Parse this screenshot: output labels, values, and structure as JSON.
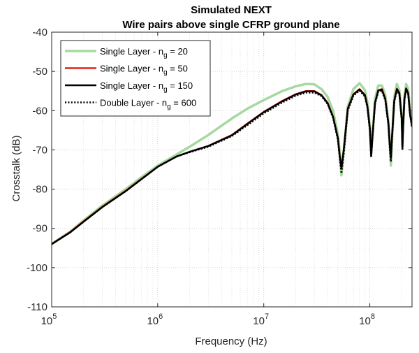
{
  "chart_data": {
    "type": "line",
    "title": "Simulated NEXT",
    "subtitle": "Wire pairs above single CFRP ground plane",
    "xlabel": "Frequency (Hz)",
    "ylabel": "Crosstalk (dB)",
    "xscale": "log",
    "xlim": [
      100000,
      250000000
    ],
    "ylim": [
      -110,
      -40
    ],
    "grid": true,
    "grid_minor_x": true,
    "legend_position": "top-left",
    "x_ticks": [
      {
        "value": 100000,
        "base": "10",
        "exp": "5"
      },
      {
        "value": 1000000,
        "base": "10",
        "exp": "6"
      },
      {
        "value": 10000000,
        "base": "10",
        "exp": "7"
      },
      {
        "value": 100000000,
        "base": "10",
        "exp": "8"
      }
    ],
    "y_ticks": [
      "-40",
      "-50",
      "-60",
      "-70",
      "-80",
      "-90",
      "-100",
      "-110"
    ],
    "series": [
      {
        "name": "Single Layer - n_g = 20",
        "legend_main": "Single Layer - n",
        "legend_sub": "g",
        "legend_tail": " = 20",
        "color": "#a6d9a0",
        "width": 3.5,
        "dash": "",
        "x": [
          100000,
          150000,
          200000,
          300000,
          500000,
          700000,
          1000000,
          1500000,
          2000000,
          3000000,
          5000000,
          7000000,
          10000000,
          15000000,
          20000000,
          25000000,
          30000000,
          35000000,
          40000000,
          45000000,
          50000000,
          52000000,
          54000000,
          57000000,
          62000000,
          70000000,
          80000000,
          90000000,
          95000000,
          100000000,
          103000000,
          106000000,
          112000000,
          120000000,
          130000000,
          140000000,
          150000000,
          155000000,
          158000000,
          162000000,
          170000000,
          180000000,
          190000000,
          200000000,
          203000000,
          206000000,
          212000000,
          220000000,
          230000000,
          240000000,
          250000000
        ],
        "y": [
          -94,
          -90.8,
          -88,
          -84.2,
          -80,
          -77,
          -74,
          -71.2,
          -69.2,
          -66.2,
          -62,
          -59.5,
          -57.3,
          -55,
          -53.8,
          -53.2,
          -53.3,
          -54.5,
          -56.5,
          -60,
          -66,
          -70.5,
          -76.5,
          -70,
          -59,
          -54.5,
          -53,
          -54.8,
          -58,
          -64,
          -70.5,
          -66,
          -57,
          -53.6,
          -53.6,
          -56,
          -63,
          -69.5,
          -74,
          -68,
          -56.5,
          -53.2,
          -54.8,
          -62,
          -69,
          -64.5,
          -56.5,
          -53.2,
          -54.5,
          -60,
          -63
        ]
      },
      {
        "name": "Single Layer - n_g = 50",
        "legend_main": "Single Layer - n",
        "legend_sub": "g",
        "legend_tail": " = 50",
        "color": "#e32119",
        "width": 2.5,
        "dash": "",
        "x": [
          100000,
          150000,
          200000,
          300000,
          500000,
          700000,
          1000000,
          1500000,
          2000000,
          3000000,
          5000000,
          7000000,
          10000000,
          15000000,
          20000000,
          25000000,
          30000000,
          35000000,
          40000000,
          45000000,
          50000000,
          52000000,
          54000000,
          57000000,
          62000000,
          70000000,
          80000000,
          90000000,
          95000000,
          100000000,
          103000000,
          106000000,
          112000000,
          120000000,
          130000000,
          140000000,
          150000000,
          155000000,
          158000000,
          162000000,
          170000000,
          180000000,
          190000000,
          200000000,
          203000000,
          206000000,
          212000000,
          220000000,
          230000000,
          240000000,
          250000000
        ],
        "y": [
          -94,
          -90.9,
          -88.2,
          -84.5,
          -80.4,
          -77.4,
          -74.3,
          -71.7,
          -70.5,
          -69,
          -66.2,
          -63.3,
          -60.3,
          -57.5,
          -55.8,
          -55,
          -55,
          -56,
          -58,
          -61.5,
          -67,
          -71.5,
          -74.7,
          -69.5,
          -59.5,
          -55.8,
          -54.5,
          -56,
          -59,
          -64.5,
          -71.5,
          -66.5,
          -58,
          -54.8,
          -54.5,
          -57,
          -63.5,
          -69.5,
          -72,
          -66.5,
          -57.5,
          -54.4,
          -55.5,
          -62,
          -69.5,
          -64,
          -57,
          -54.3,
          -55.5,
          -61,
          -64
        ]
      },
      {
        "name": "Single Layer - n_g = 150",
        "legend_main": "Single Layer - n",
        "legend_sub": "g",
        "legend_tail": " = 150",
        "color": "#000000",
        "width": 2.5,
        "dash": "",
        "x": [
          100000,
          150000,
          200000,
          300000,
          500000,
          700000,
          1000000,
          1500000,
          2000000,
          3000000,
          5000000,
          7000000,
          10000000,
          15000000,
          20000000,
          25000000,
          30000000,
          35000000,
          40000000,
          45000000,
          50000000,
          52000000,
          54000000,
          57000000,
          62000000,
          70000000,
          80000000,
          90000000,
          95000000,
          100000000,
          103000000,
          106000000,
          112000000,
          120000000,
          130000000,
          140000000,
          150000000,
          155000000,
          158000000,
          162000000,
          170000000,
          180000000,
          190000000,
          200000000,
          203000000,
          206000000,
          212000000,
          220000000,
          230000000,
          240000000,
          250000000
        ],
        "y": [
          -94,
          -91,
          -88.3,
          -84.6,
          -80.5,
          -77.5,
          -74.3,
          -71.7,
          -70.5,
          -69,
          -66.3,
          -63.4,
          -60.4,
          -57.6,
          -55.9,
          -55.1,
          -55.1,
          -56.1,
          -58.1,
          -61.6,
          -67,
          -71.5,
          -74.7,
          -69.5,
          -59.5,
          -55.9,
          -54.6,
          -56.1,
          -59,
          -64.5,
          -71.5,
          -66.5,
          -58,
          -54.9,
          -54.6,
          -57.1,
          -63.5,
          -69.5,
          -72,
          -66.5,
          -57.5,
          -54.5,
          -55.6,
          -62,
          -69.5,
          -64,
          -57,
          -54.4,
          -55.6,
          -61,
          -64
        ]
      },
      {
        "name": "Double Layer - n_g = 600",
        "legend_main": "Double Layer - n",
        "legend_sub": "g",
        "legend_tail": " = 600",
        "color": "#000000",
        "width": 2.5,
        "dash": "2,2.4",
        "x": [
          100000,
          150000,
          200000,
          300000,
          500000,
          700000,
          1000000,
          1500000,
          2000000,
          3000000,
          5000000,
          7000000,
          10000000,
          15000000,
          20000000,
          25000000,
          30000000,
          35000000,
          40000000,
          45000000,
          50000000,
          52000000,
          54000000,
          57000000,
          62000000,
          70000000,
          80000000,
          90000000,
          95000000,
          100000000,
          103000000,
          106000000,
          112000000,
          120000000,
          130000000,
          140000000,
          150000000,
          155000000,
          158000000,
          162000000,
          170000000,
          180000000,
          190000000,
          200000000,
          203000000,
          206000000,
          212000000,
          220000000,
          230000000,
          240000000,
          250000000
        ],
        "y": [
          -94,
          -91,
          -88.3,
          -84.6,
          -80.5,
          -77.5,
          -74.3,
          -71.7,
          -70.6,
          -69.2,
          -66.5,
          -63.7,
          -60.7,
          -57.9,
          -56.2,
          -55.4,
          -55.4,
          -56.3,
          -58.3,
          -61.8,
          -67.5,
          -72,
          -76,
          -70.5,
          -60,
          -56.2,
          -54.9,
          -56.4,
          -59.3,
          -65,
          -72,
          -67,
          -58.3,
          -55.2,
          -54.9,
          -57.4,
          -64,
          -70.5,
          -73,
          -67,
          -57.8,
          -54.8,
          -55.9,
          -62.5,
          -70,
          -64.5,
          -57.3,
          -54.7,
          -55.9,
          -61.3,
          -64.3
        ]
      }
    ]
  }
}
